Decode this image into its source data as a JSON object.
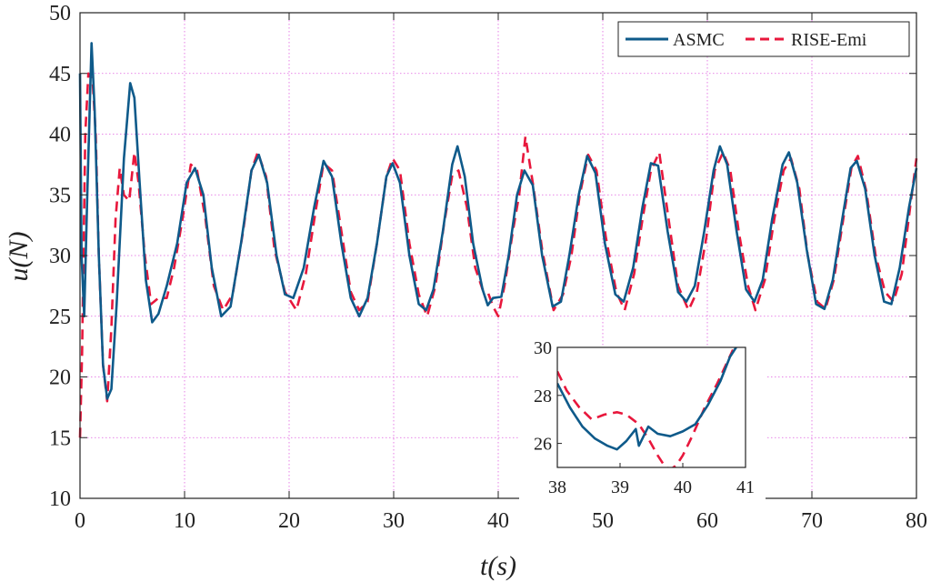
{
  "chart_data": {
    "type": "line",
    "title": "",
    "xlabel": "t(s)",
    "ylabel": "u(N)",
    "xlim": [
      0,
      80
    ],
    "ylim": [
      10,
      50
    ],
    "xticks": [
      "0",
      "10",
      "20",
      "30",
      "40",
      "50",
      "60",
      "70",
      "80"
    ],
    "yticks": [
      "10",
      "15",
      "20",
      "25",
      "30",
      "35",
      "40",
      "45",
      "50"
    ],
    "grid": true,
    "legend_position": "top-right",
    "colors": {
      "asmc": "#0e5a8a",
      "rise": "#e8173c",
      "grid": "#e060e0"
    },
    "series": [
      {
        "name": "ASMC",
        "style": "solid",
        "points": [
          [
            0,
            45
          ],
          [
            0.15,
            30
          ],
          [
            0.4,
            25
          ],
          [
            0.7,
            35
          ],
          [
            1.1,
            47.5
          ],
          [
            1.4,
            42
          ],
          [
            1.8,
            30
          ],
          [
            2.2,
            21
          ],
          [
            2.6,
            18.2
          ],
          [
            3.0,
            19
          ],
          [
            3.5,
            26
          ],
          [
            4.2,
            38
          ],
          [
            4.8,
            44.2
          ],
          [
            5.2,
            43
          ],
          [
            5.7,
            36
          ],
          [
            6.3,
            28
          ],
          [
            6.9,
            24.5
          ],
          [
            7.5,
            25.2
          ],
          [
            8.3,
            27.5
          ],
          [
            9.3,
            31
          ],
          [
            10.2,
            36
          ],
          [
            11.0,
            37.2
          ],
          [
            11.8,
            35
          ],
          [
            12.6,
            29
          ],
          [
            13.5,
            25
          ],
          [
            14.4,
            25.8
          ],
          [
            15.4,
            31
          ],
          [
            16.4,
            37
          ],
          [
            17.1,
            38.3
          ],
          [
            17.9,
            36
          ],
          [
            18.8,
            30
          ],
          [
            19.6,
            26.8
          ],
          [
            20.4,
            26.5
          ],
          [
            21.4,
            29
          ],
          [
            22.4,
            34
          ],
          [
            23.3,
            37.8
          ],
          [
            24.1,
            36.5
          ],
          [
            25.0,
            31
          ],
          [
            25.9,
            26.5
          ],
          [
            26.7,
            25
          ],
          [
            27.5,
            26.5
          ],
          [
            28.4,
            31
          ],
          [
            29.3,
            36.5
          ],
          [
            29.9,
            37.6
          ],
          [
            30.6,
            36
          ],
          [
            31.5,
            30
          ],
          [
            32.4,
            26
          ],
          [
            33.1,
            25.5
          ],
          [
            33.8,
            27.2
          ],
          [
            34.7,
            32
          ],
          [
            35.6,
            37.5
          ],
          [
            36.1,
            39
          ],
          [
            36.8,
            36.5
          ],
          [
            37.6,
            31
          ],
          [
            38.5,
            27.2
          ],
          [
            39.0,
            25.9
          ],
          [
            39.5,
            26.5
          ],
          [
            40.3,
            26.6
          ],
          [
            41.0,
            30
          ],
          [
            41.8,
            35
          ],
          [
            42.5,
            37
          ],
          [
            43.3,
            35.8
          ],
          [
            44.2,
            30
          ],
          [
            45.2,
            25.8
          ],
          [
            46.0,
            26.2
          ],
          [
            46.8,
            30
          ],
          [
            47.7,
            35
          ],
          [
            48.5,
            38.2
          ],
          [
            49.3,
            36.8
          ],
          [
            50.2,
            31
          ],
          [
            51.2,
            26.8
          ],
          [
            52.0,
            26.2
          ],
          [
            52.9,
            29
          ],
          [
            53.8,
            34
          ],
          [
            54.6,
            37.6
          ],
          [
            55.3,
            37.4
          ],
          [
            56.2,
            32
          ],
          [
            57.2,
            27
          ],
          [
            58.0,
            26.2
          ],
          [
            58.8,
            27.5
          ],
          [
            59.7,
            32
          ],
          [
            60.6,
            37
          ],
          [
            61.2,
            39
          ],
          [
            61.9,
            37.5
          ],
          [
            62.8,
            32
          ],
          [
            63.7,
            27.2
          ],
          [
            64.5,
            26.2
          ],
          [
            65.3,
            28
          ],
          [
            66.2,
            33
          ],
          [
            67.2,
            37.5
          ],
          [
            67.8,
            38.5
          ],
          [
            68.6,
            36
          ],
          [
            69.5,
            30.5
          ],
          [
            70.4,
            26
          ],
          [
            71.2,
            25.6
          ],
          [
            72.0,
            28
          ],
          [
            72.9,
            33
          ],
          [
            73.7,
            37.2
          ],
          [
            74.3,
            37.8
          ],
          [
            75.1,
            35.5
          ],
          [
            76.0,
            30
          ],
          [
            76.9,
            26.2
          ],
          [
            77.6,
            26
          ],
          [
            78.4,
            29
          ],
          [
            79.3,
            34
          ],
          [
            80.0,
            37.2
          ]
        ]
      },
      {
        "name": "RISE-Emi",
        "style": "dashed",
        "points": [
          [
            0,
            15
          ],
          [
            0.2,
            22
          ],
          [
            0.5,
            40
          ],
          [
            0.8,
            45
          ],
          [
            1.2,
            44.5
          ],
          [
            1.5,
            40
          ],
          [
            1.8,
            30
          ],
          [
            2.2,
            21
          ],
          [
            2.6,
            18
          ],
          [
            3.0,
            24
          ],
          [
            3.4,
            33
          ],
          [
            3.8,
            37.2
          ],
          [
            4.2,
            35
          ],
          [
            4.7,
            34.5
          ],
          [
            5.2,
            38.5
          ],
          [
            5.6,
            36
          ],
          [
            6.2,
            30
          ],
          [
            6.8,
            26
          ],
          [
            7.5,
            26.5
          ],
          [
            8.3,
            26.5
          ],
          [
            9.0,
            29
          ],
          [
            9.8,
            33
          ],
          [
            10.6,
            37.5
          ],
          [
            11.2,
            37
          ],
          [
            12.0,
            33
          ],
          [
            12.8,
            27.5
          ],
          [
            13.7,
            25.5
          ],
          [
            14.6,
            26.8
          ],
          [
            15.6,
            32
          ],
          [
            16.4,
            37
          ],
          [
            17.0,
            38.5
          ],
          [
            17.8,
            36.5
          ],
          [
            18.6,
            30.5
          ],
          [
            19.6,
            27
          ],
          [
            20.7,
            25.5
          ],
          [
            21.6,
            28.5
          ],
          [
            22.5,
            33.5
          ],
          [
            23.3,
            37.6
          ],
          [
            24.1,
            37
          ],
          [
            25.0,
            32
          ],
          [
            25.9,
            27
          ],
          [
            26.7,
            25.5
          ],
          [
            27.5,
            26.2
          ],
          [
            28.4,
            31
          ],
          [
            29.3,
            36.5
          ],
          [
            29.9,
            38
          ],
          [
            30.6,
            37
          ],
          [
            31.5,
            31
          ],
          [
            32.4,
            26.8
          ],
          [
            33.2,
            25
          ],
          [
            34.0,
            27.5
          ],
          [
            34.8,
            32.5
          ],
          [
            35.6,
            36.6
          ],
          [
            36.2,
            37
          ],
          [
            37.0,
            34
          ],
          [
            37.8,
            29
          ],
          [
            38.5,
            27.2
          ],
          [
            39.0,
            27.0
          ],
          [
            39.5,
            25.8
          ],
          [
            40.0,
            25.0
          ],
          [
            40.6,
            27.5
          ],
          [
            41.4,
            32
          ],
          [
            42.0,
            35
          ],
          [
            42.6,
            39.8
          ],
          [
            43.3,
            36
          ],
          [
            44.2,
            30.5
          ],
          [
            45.3,
            25.5
          ],
          [
            46.2,
            26.8
          ],
          [
            47.0,
            30
          ],
          [
            47.8,
            35
          ],
          [
            48.6,
            38.3
          ],
          [
            49.4,
            37
          ],
          [
            50.3,
            31.5
          ],
          [
            51.3,
            27
          ],
          [
            52.1,
            25.5
          ],
          [
            53.0,
            28.5
          ],
          [
            53.8,
            33
          ],
          [
            54.6,
            37
          ],
          [
            55.4,
            38.5
          ],
          [
            56.3,
            33
          ],
          [
            57.2,
            27.5
          ],
          [
            58.2,
            25.5
          ],
          [
            59.0,
            27
          ],
          [
            59.9,
            31.5
          ],
          [
            60.7,
            37
          ],
          [
            61.5,
            38.5
          ],
          [
            62.2,
            37
          ],
          [
            63.0,
            32
          ],
          [
            63.9,
            27.5
          ],
          [
            64.6,
            25.5
          ],
          [
            65.5,
            28
          ],
          [
            66.4,
            33
          ],
          [
            67.3,
            37
          ],
          [
            68.0,
            38
          ],
          [
            68.8,
            35.5
          ],
          [
            69.6,
            30
          ],
          [
            70.5,
            26.2
          ],
          [
            71.3,
            25.6
          ],
          [
            72.1,
            28
          ],
          [
            73.0,
            33
          ],
          [
            73.8,
            37.3
          ],
          [
            74.4,
            38.2
          ],
          [
            75.2,
            35.3
          ],
          [
            76.1,
            30
          ],
          [
            77.0,
            27
          ],
          [
            77.8,
            26.2
          ],
          [
            78.6,
            28.5
          ],
          [
            79.4,
            34
          ],
          [
            80.0,
            38
          ]
        ]
      }
    ],
    "inset": {
      "xlim": [
        38,
        41
      ],
      "ylim": [
        25,
        30
      ],
      "xticks": [
        "38",
        "39",
        "40",
        "41"
      ],
      "yticks": [
        "26",
        "28",
        "30"
      ],
      "series": [
        {
          "name": "ASMC",
          "points": [
            [
              38.0,
              28.5
            ],
            [
              38.2,
              27.5
            ],
            [
              38.4,
              26.7
            ],
            [
              38.6,
              26.2
            ],
            [
              38.8,
              25.9
            ],
            [
              38.95,
              25.75
            ],
            [
              39.1,
              26.1
            ],
            [
              39.25,
              26.6
            ],
            [
              39.3,
              25.9
            ],
            [
              39.45,
              26.7
            ],
            [
              39.6,
              26.4
            ],
            [
              39.8,
              26.3
            ],
            [
              40.0,
              26.5
            ],
            [
              40.2,
              26.8
            ],
            [
              40.4,
              27.6
            ],
            [
              40.6,
              28.6
            ],
            [
              40.75,
              29.6
            ],
            [
              40.85,
              30.0
            ]
          ]
        },
        {
          "name": "RISE-Emi",
          "points": [
            [
              38.0,
              29.0
            ],
            [
              38.15,
              28.2
            ],
            [
              38.35,
              27.5
            ],
            [
              38.55,
              27.0
            ],
            [
              38.75,
              27.2
            ],
            [
              38.95,
              27.3
            ],
            [
              39.1,
              27.2
            ],
            [
              39.3,
              26.8
            ],
            [
              39.45,
              26.2
            ],
            [
              39.6,
              25.5
            ],
            [
              39.7,
              25.1
            ],
            [
              39.8,
              24.9
            ],
            [
              39.9,
              25.1
            ],
            [
              40.0,
              25.5
            ],
            [
              40.15,
              26.3
            ],
            [
              40.35,
              27.5
            ],
            [
              40.55,
              28.5
            ],
            [
              40.8,
              29.9
            ]
          ]
        }
      ]
    }
  }
}
